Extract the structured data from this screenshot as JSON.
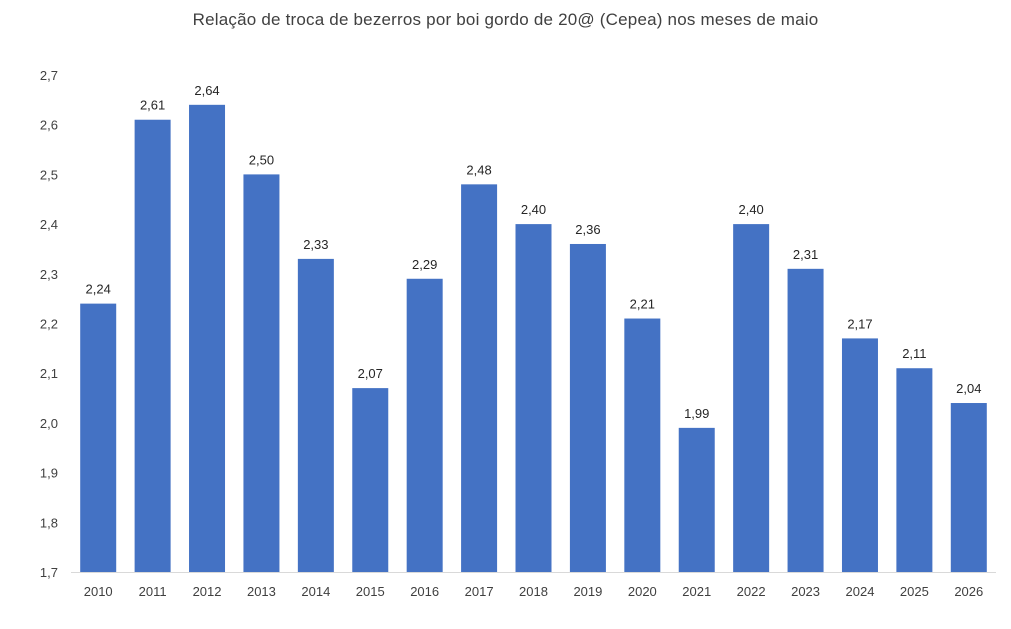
{
  "chart_data": {
    "type": "bar",
    "title": "Relação de troca de bezerros por boi gordo de 20@ (Cepea) nos meses de maio",
    "xlabel": "",
    "ylabel": "",
    "categories": [
      "2010",
      "2011",
      "2012",
      "2013",
      "2014",
      "2015",
      "2016",
      "2017",
      "2018",
      "2019",
      "2020",
      "2021",
      "2022",
      "2023",
      "2024",
      "2025",
      "2026"
    ],
    "values": [
      2.24,
      2.61,
      2.64,
      2.5,
      2.33,
      2.07,
      2.29,
      2.48,
      2.4,
      2.36,
      2.21,
      1.99,
      2.4,
      2.31,
      2.17,
      2.11,
      2.04
    ],
    "data_labels": [
      "2,24",
      "2,61",
      "2,64",
      "2,50",
      "2,33",
      "2,07",
      "2,29",
      "2,48",
      "2,40",
      "2,36",
      "2,21",
      "1,99",
      "2,40",
      "2,31",
      "2,17",
      "2,11",
      "2,04"
    ],
    "ylim": [
      1.7,
      2.7
    ],
    "yticks": [
      1.7,
      1.8,
      1.9,
      2.0,
      2.1,
      2.2,
      2.3,
      2.4,
      2.5,
      2.6,
      2.7
    ],
    "ytick_labels": [
      "1,7",
      "1,8",
      "1,9",
      "2,0",
      "2,1",
      "2,2",
      "2,3",
      "2,4",
      "2,5",
      "2,6",
      "2,7"
    ],
    "grid": false,
    "legend": "none",
    "bar_color": "#4472C4",
    "axis_color": "#D9D9D9"
  }
}
